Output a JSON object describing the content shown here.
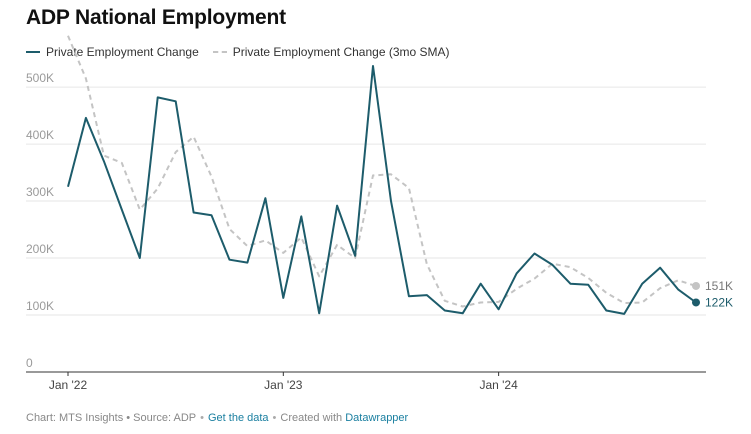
{
  "header": {
    "title": "ADP National Employment"
  },
  "legend": {
    "series_1": "Private Employment Change",
    "series_2": "Private Employment Change (3mo SMA)"
  },
  "footer": {
    "source": "Chart: MTS Insights • Source: ADP",
    "get_data": "Get the data",
    "created_with": "Created with",
    "tool": "Datawrapper"
  },
  "colors": {
    "main": "#1d5c6b",
    "sma": "#c4c4c4",
    "grid": "#e6e6e6",
    "axis": "#333333"
  },
  "chart_data": {
    "type": "line",
    "x": [
      "2022-01",
      "2022-02",
      "2022-03",
      "2022-04",
      "2022-05",
      "2022-06",
      "2022-07",
      "2022-08",
      "2022-09",
      "2022-10",
      "2022-11",
      "2022-12",
      "2023-01",
      "2023-02",
      "2023-03",
      "2023-04",
      "2023-05",
      "2023-06",
      "2023-07",
      "2023-08",
      "2023-09",
      "2023-10",
      "2023-11",
      "2023-12",
      "2024-01",
      "2024-02",
      "2024-03",
      "2024-04",
      "2024-05",
      "2024-06",
      "2024-07",
      "2024-08",
      "2024-09",
      "2024-10",
      "2024-11",
      "2024-12"
    ],
    "x_ticks": [
      "Jan '22",
      "Jan '23",
      "Jan '24"
    ],
    "y_ticks": [
      "0",
      "100K",
      "200K",
      "300K",
      "400K",
      "500K"
    ],
    "ylim": [
      0,
      530000
    ],
    "grid": true,
    "series": [
      {
        "name": "Private Employment Change",
        "style": "solid",
        "values": [
          325000,
          446000,
          370000,
          285000,
          200000,
          482000,
          475000,
          280000,
          275000,
          197000,
          192000,
          305000,
          130000,
          273000,
          103000,
          292000,
          204000,
          537000,
          300000,
          133000,
          135000,
          108000,
          103000,
          155000,
          110000,
          173000,
          208000,
          188000,
          155000,
          153000,
          108000,
          102000,
          155000,
          183000,
          145000,
          122000
        ],
        "end_label": "122K"
      },
      {
        "name": "Private Employment Change (3mo SMA)",
        "style": "dashed",
        "values": [
          590000,
          515000,
          380000,
          367000,
          285000,
          322000,
          386000,
          413000,
          343000,
          251000,
          221000,
          231000,
          209000,
          236000,
          168000,
          223000,
          200000,
          345000,
          347000,
          323000,
          189000,
          125000,
          115000,
          122000,
          123000,
          146000,
          164000,
          190000,
          184000,
          165000,
          139000,
          121000,
          122000,
          147000,
          161000,
          151000
        ],
        "end_label": "151K"
      }
    ]
  }
}
